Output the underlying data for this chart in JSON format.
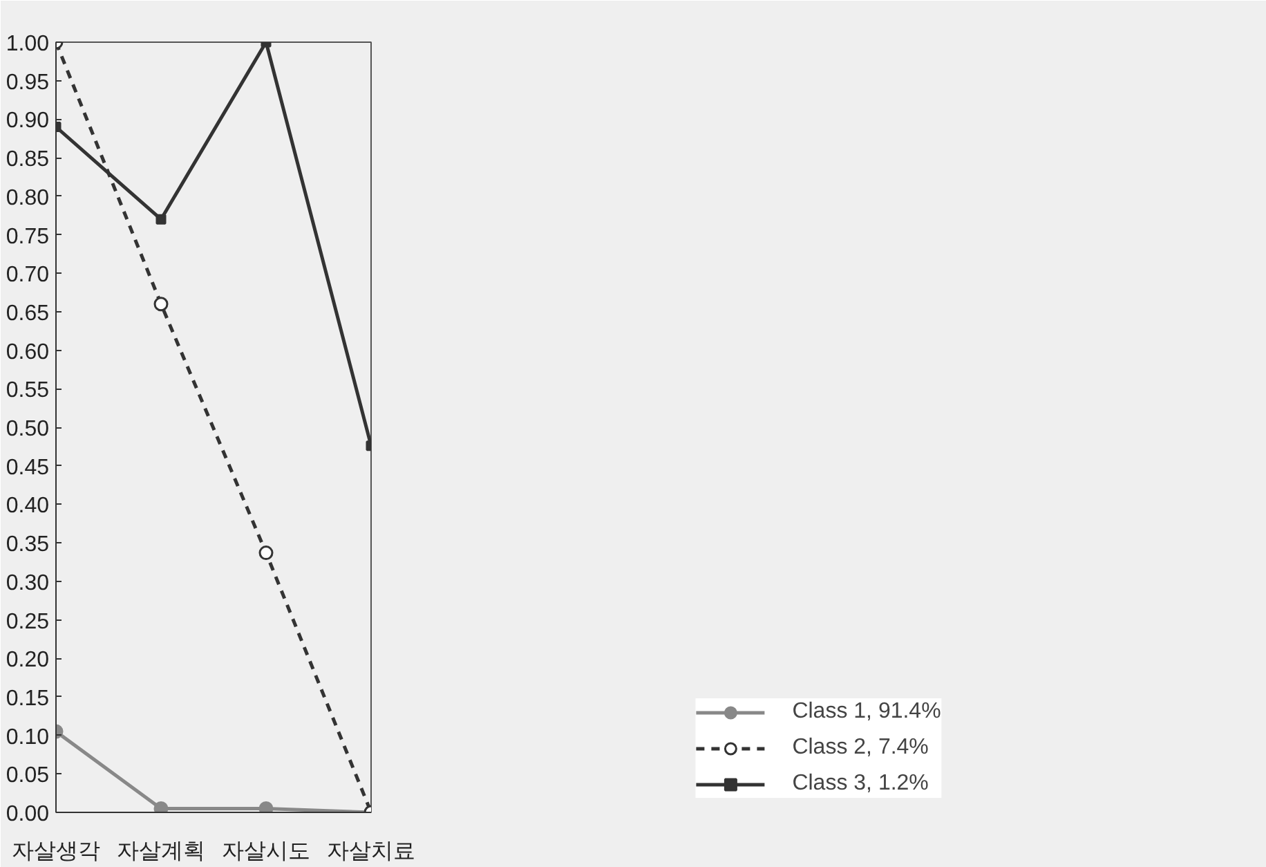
{
  "chart_data": {
    "type": "line",
    "categories": [
      "자살생각",
      "자살계획",
      "자살시도",
      "자살치료"
    ],
    "ylim": [
      0,
      1
    ],
    "yticks": [
      {
        "value": 0,
        "label": "0.00"
      },
      {
        "value": 0.05,
        "label": "0.05"
      },
      {
        "value": 0.1,
        "label": "0.10"
      },
      {
        "value": 0.15,
        "label": "0.15"
      },
      {
        "value": 0.2,
        "label": "0.20"
      },
      {
        "value": 0.25,
        "label": "0.25"
      },
      {
        "value": 0.3,
        "label": "0.30"
      },
      {
        "value": 0.35,
        "label": "0.35"
      },
      {
        "value": 0.4,
        "label": "0.40"
      },
      {
        "value": 0.45,
        "label": "0.45"
      },
      {
        "value": 0.5,
        "label": "0.50"
      },
      {
        "value": 0.55,
        "label": "0.55"
      },
      {
        "value": 0.6,
        "label": "0.60"
      },
      {
        "value": 0.65,
        "label": "0.65"
      },
      {
        "value": 0.7,
        "label": "0.70"
      },
      {
        "value": 0.75,
        "label": "0.75"
      },
      {
        "value": 0.8,
        "label": "0.80"
      },
      {
        "value": 0.85,
        "label": "0.85"
      },
      {
        "value": 0.9,
        "label": "0.90"
      },
      {
        "value": 0.95,
        "label": "0.95"
      },
      {
        "value": 1,
        "label": "1.00"
      }
    ],
    "series": [
      {
        "name": "Class 1, 91.4%",
        "color": "#888888",
        "marker": "circle",
        "line_style": "solid",
        "values": [
          0.105,
          0.005,
          0.005,
          0.0
        ]
      },
      {
        "name": "Class 2, 7.4%",
        "color": "#333333",
        "marker": "circle",
        "line_style": "dashed",
        "values": [
          1.0,
          0.66,
          0.337,
          0.0
        ]
      },
      {
        "name": "Class 3, 1.2%",
        "color": "#333333",
        "marker": "square",
        "line_style": "solid",
        "values": [
          0.89,
          0.77,
          1.0,
          0.476
        ]
      }
    ],
    "grid": false,
    "legend": "bottom right"
  }
}
